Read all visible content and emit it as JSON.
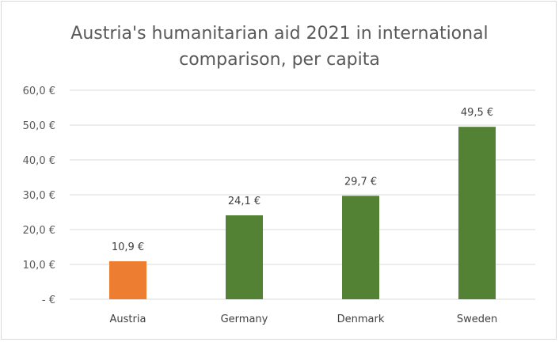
{
  "chart_data": {
    "type": "bar",
    "title_lines": [
      "Austria's humanitarian aid 2021 in international",
      "comparison, per capita"
    ],
    "categories": [
      "Austria",
      "Germany",
      "Denmark",
      "Sweden"
    ],
    "values": [
      10.9,
      24.1,
      29.7,
      49.5
    ],
    "value_labels": [
      "10,9 €",
      "24,1 €",
      "29,7 €",
      "49,5 €"
    ],
    "bar_colors": [
      "#ED7D31",
      "#548235",
      "#548235",
      "#548235"
    ],
    "ylim": [
      0,
      60
    ],
    "yticks": [
      0,
      10,
      20,
      30,
      40,
      50,
      60
    ],
    "ytick_labels": [
      "-  €",
      "10,0 €",
      "20,0 €",
      "30,0 €",
      "40,0 €",
      "50,0 €",
      "60,0 €"
    ],
    "grid": true,
    "legend": "none",
    "xlabel": "",
    "ylabel": ""
  }
}
